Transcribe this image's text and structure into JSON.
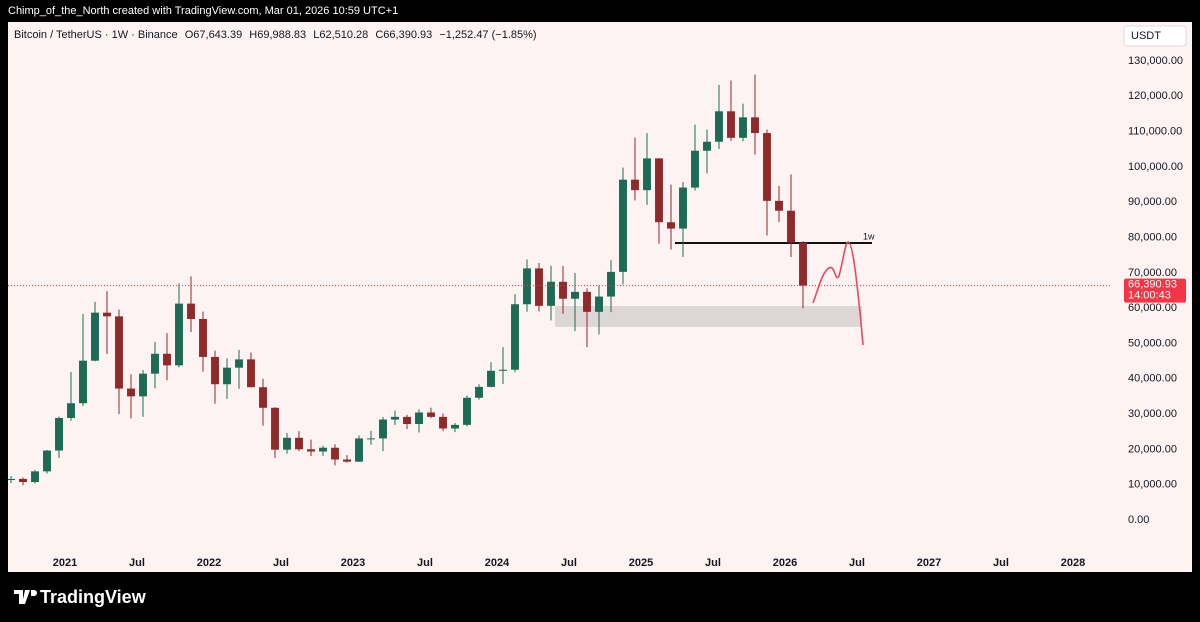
{
  "credit": "Chimp_of_the_North created with TradingView.com, Mar 01, 2026 10:59 UTC+1",
  "brand": "TradingView",
  "chart_data": {
    "type": "candlestick",
    "header": {
      "symbol": "Bitcoin / TetherUS · 1W · Binance",
      "open": "O67,643.39",
      "high": "H69,988.83",
      "low": "L62,510.28",
      "close": "C66,390.93",
      "change": "−1,252.47 (−1.85%)"
    },
    "currency": "USDT",
    "annotation": "1w",
    "last_price": {
      "value": 66390.93,
      "label": "66,390.93"
    },
    "countdown": "14:00:43",
    "up_color": "#1e6b55",
    "down_color": "#8f2a2a",
    "x": [
      "2020-08",
      "2020-09",
      "2020-10",
      "2020-11",
      "2020-12",
      "2021-01",
      "2021-02",
      "2021-03",
      "2021-04",
      "2021-05",
      "2021-06",
      "2021-07",
      "2021-08",
      "2021-09",
      "2021-10",
      "2021-11",
      "2021-12",
      "2022-01",
      "2022-02",
      "2022-03",
      "2022-04",
      "2022-05",
      "2022-06",
      "2022-07",
      "2022-08",
      "2022-09",
      "2022-10",
      "2022-11",
      "2022-12",
      "2023-01",
      "2023-02",
      "2023-03",
      "2023-04",
      "2023-05",
      "2023-06",
      "2023-07",
      "2023-08",
      "2023-09",
      "2023-10",
      "2023-11",
      "2023-12",
      "2024-01",
      "2024-02",
      "2024-03",
      "2024-04",
      "2024-05",
      "2024-06",
      "2024-07",
      "2024-08",
      "2024-09",
      "2024-10",
      "2024-11",
      "2024-12",
      "2025-01",
      "2025-02",
      "2025-03",
      "2025-04",
      "2025-05",
      "2025-06",
      "2025-07",
      "2025-08",
      "2025-09",
      "2025-10",
      "2025-11",
      "2025-12",
      "2026-01",
      "2026-02"
    ],
    "open": [
      11350,
      11650,
      10780,
      13800,
      19700,
      28920,
      33090,
      45140,
      58740,
      57690,
      37250,
      35040,
      41460,
      47100,
      43820,
      61300,
      56950,
      46200,
      38470,
      43160,
      45510,
      37630,
      31800,
      19940,
      23300,
      20050,
      19420,
      20490,
      17160,
      16540,
      23120,
      23140,
      28470,
      29230,
      27210,
      30470,
      29230,
      25940,
      26960,
      34640,
      37720,
      42280,
      42580,
      61130,
      71280,
      60670,
      67490,
      62680,
      64630,
      58970,
      63300,
      70290,
      96400,
      93430,
      102430,
      84350,
      82550,
      94170,
      104590,
      107140,
      115760,
      108250,
      114050,
      109600,
      90400,
      87600,
      78600
    ],
    "high": [
      12470,
      12050,
      14100,
      19860,
      29300,
      41950,
      58350,
      61780,
      64850,
      59600,
      41300,
      42450,
      50500,
      52950,
      67000,
      69000,
      59050,
      48000,
      45820,
      48190,
      47450,
      40020,
      31980,
      24670,
      25210,
      22800,
      21080,
      21480,
      18390,
      23960,
      25250,
      29180,
      31000,
      29820,
      31390,
      31800,
      30190,
      27490,
      35280,
      38450,
      44700,
      48970,
      64000,
      73780,
      72800,
      71980,
      71950,
      70000,
      65600,
      66500,
      73600,
      99800,
      108350,
      109590,
      102500,
      95000,
      95750,
      111980,
      110600,
      123200,
      124470,
      117900,
      126200,
      110600,
      94600,
      97900,
      79000
    ],
    "low": [
      10500,
      9850,
      10370,
      13200,
      17570,
      28130,
      32300,
      44950,
      47040,
      30000,
      28800,
      29280,
      37330,
      39600,
      43280,
      53250,
      42000,
      32950,
      34320,
      37150,
      37580,
      26700,
      17620,
      18780,
      19520,
      18120,
      18190,
      15480,
      16250,
      16500,
      21350,
      19550,
      26940,
      25810,
      24800,
      28860,
      25170,
      24900,
      26540,
      34100,
      37630,
      38550,
      41880,
      59000,
      59100,
      56550,
      58400,
      53500,
      49000,
      52550,
      58900,
      66800,
      90500,
      89250,
      78250,
      76600,
      74500,
      93350,
      98200,
      105100,
      107350,
      107270,
      103500,
      80600,
      84400,
      74500,
      60000
    ],
    "close": [
      11650,
      10780,
      13800,
      19700,
      28920,
      33090,
      45140,
      58740,
      57690,
      37250,
      35040,
      41460,
      47100,
      43820,
      61300,
      56950,
      46200,
      38470,
      43160,
      45510,
      37630,
      31800,
      19940,
      23300,
      20050,
      19420,
      20490,
      17160,
      16540,
      23120,
      23140,
      28470,
      29230,
      27210,
      30470,
      29230,
      25940,
      26960,
      34640,
      37720,
      42280,
      42580,
      61130,
      71280,
      60670,
      67490,
      62680,
      64630,
      58970,
      63300,
      70290,
      96400,
      93430,
      102430,
      84350,
      82550,
      94170,
      104590,
      107140,
      115760,
      108250,
      114050,
      109600,
      90400,
      87600,
      78600,
      66390.93
    ],
    "xlim": [
      "2020-08",
      "2028-04"
    ],
    "xticks": [
      {
        "value": "2021-01",
        "label": "2021"
      },
      {
        "value": "2021-07",
        "label": "Jul"
      },
      {
        "value": "2022-01",
        "label": "2022"
      },
      {
        "value": "2022-07",
        "label": "Jul"
      },
      {
        "value": "2023-01",
        "label": "2023"
      },
      {
        "value": "2023-07",
        "label": "Jul"
      },
      {
        "value": "2024-01",
        "label": "2024"
      },
      {
        "value": "2024-07",
        "label": "Jul"
      },
      {
        "value": "2025-01",
        "label": "2025"
      },
      {
        "value": "2025-07",
        "label": "Jul"
      },
      {
        "value": "2026-01",
        "label": "2026"
      },
      {
        "value": "2026-07",
        "label": "Jul"
      },
      {
        "value": "2027-01",
        "label": "2027"
      },
      {
        "value": "2027-07",
        "label": "Jul"
      },
      {
        "value": "2028-01",
        "label": "2028"
      }
    ],
    "ylim": [
      -14700,
      140200
    ],
    "yticks": [
      {
        "value": 0,
        "label": "0.00"
      },
      {
        "value": 10000,
        "label": "10,000.00"
      },
      {
        "value": 20000,
        "label": "20,000.00"
      },
      {
        "value": 30000,
        "label": "30,000.00"
      },
      {
        "value": 40000,
        "label": "40,000.00"
      },
      {
        "value": 50000,
        "label": "50,000.00"
      },
      {
        "value": 60000,
        "label": "60,000.00"
      },
      {
        "value": 70000,
        "label": "70,000.00"
      },
      {
        "value": 80000,
        "label": "80,000.00"
      },
      {
        "value": 90000,
        "label": "90,000.00"
      },
      {
        "value": 100000,
        "label": "100,000.00"
      },
      {
        "value": 110000,
        "label": "110,000.00"
      },
      {
        "value": 120000,
        "label": "120,000.00"
      },
      {
        "value": 130000,
        "label": "130,000.00"
      }
    ]
  }
}
